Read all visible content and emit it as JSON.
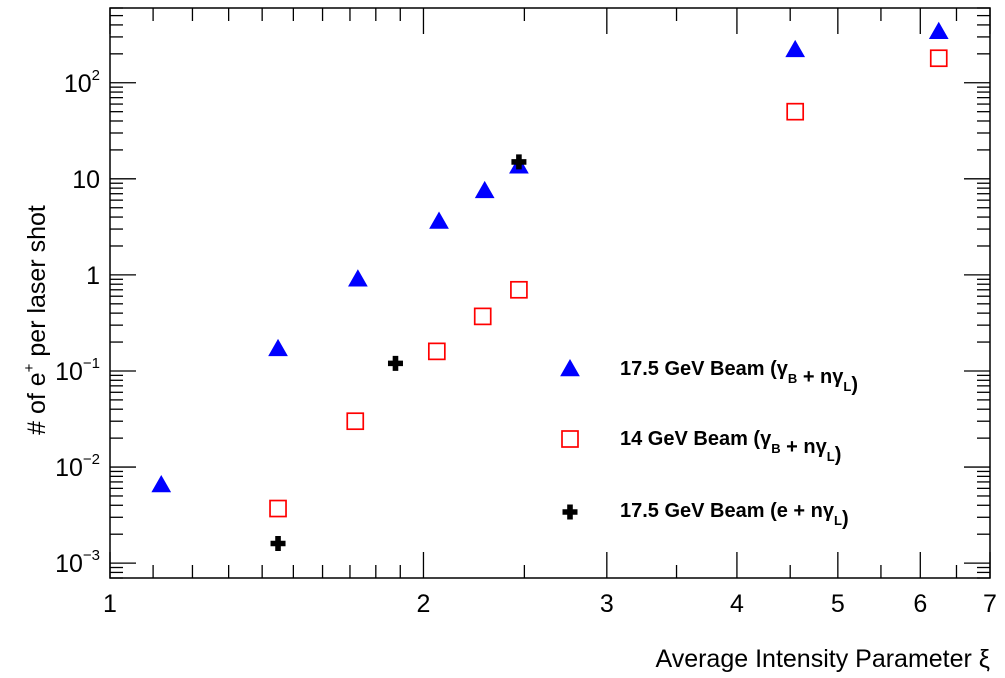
{
  "chart_data": {
    "type": "scatter",
    "title": "",
    "xlabel": "Average Intensity Parameter ξ",
    "ylabel": "# of e+ per laser shot",
    "x_scale": "log",
    "y_scale": "log",
    "xlim": [
      1,
      7
    ],
    "ylim": [
      0.0007,
      600
    ],
    "x_tick_labels": [
      "1",
      "2",
      "3",
      "4",
      "5",
      "6",
      "7"
    ],
    "y_tick_labels": [
      "10⁻³",
      "10⁻²",
      "10⁻¹",
      "1",
      "10",
      "10²"
    ],
    "grid": false,
    "legend_position": "bottom-right",
    "series": [
      {
        "name": "17.5 GeV Beam (γB + nγL)",
        "marker": "filled-triangle",
        "color": "#0000ff",
        "points": [
          {
            "x": 1.12,
            "y": 0.0065
          },
          {
            "x": 1.45,
            "y": 0.17
          },
          {
            "x": 1.73,
            "y": 0.9
          },
          {
            "x": 2.07,
            "y": 3.6
          },
          {
            "x": 2.29,
            "y": 7.5
          },
          {
            "x": 2.47,
            "y": 13.5
          },
          {
            "x": 4.55,
            "y": 220
          },
          {
            "x": 6.25,
            "y": 340
          }
        ]
      },
      {
        "name": "14 GeV Beam (γB + nγL)",
        "marker": "open-square",
        "color": "#ff0000",
        "points": [
          {
            "x": 1.45,
            "y": 0.0037
          },
          {
            "x": 1.72,
            "y": 0.03
          },
          {
            "x": 2.06,
            "y": 0.16
          },
          {
            "x": 2.28,
            "y": 0.37
          },
          {
            "x": 2.47,
            "y": 0.7
          },
          {
            "x": 4.55,
            "y": 50
          },
          {
            "x": 6.25,
            "y": 180
          }
        ]
      },
      {
        "name": "17.5 GeV Beam (e + nγL)",
        "marker": "cross",
        "color": "#000000",
        "points": [
          {
            "x": 1.45,
            "y": 0.0016
          },
          {
            "x": 1.88,
            "y": 0.12
          },
          {
            "x": 2.47,
            "y": 15
          }
        ]
      }
    ]
  }
}
